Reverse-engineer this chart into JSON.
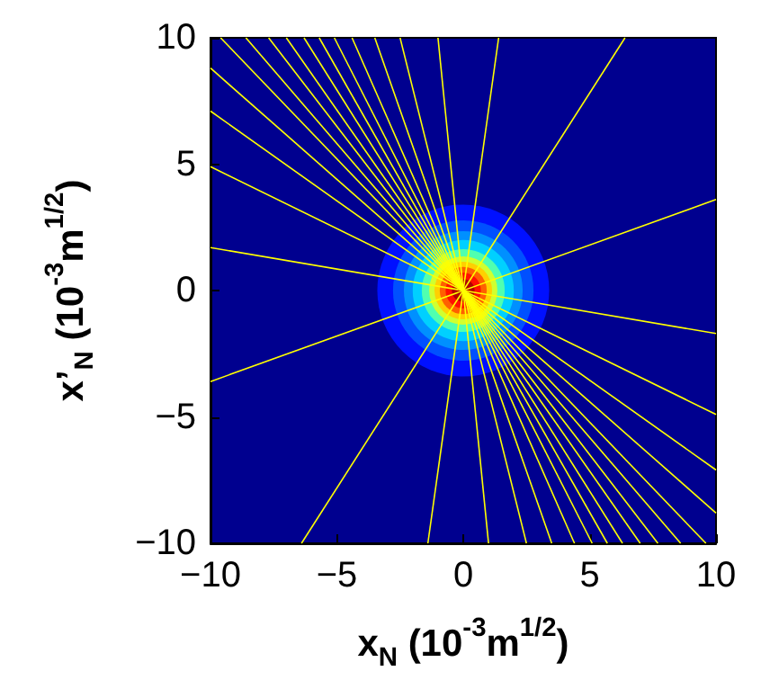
{
  "chart_data": {
    "type": "line",
    "xlabel": "x$_{N}$ (10$^{-3}$m$^{1/2}$)",
    "ylabel": "x’$_{N}$ (10$^{-3}$m$^{1/2}$)",
    "xlim": [
      -10,
      10
    ],
    "ylim": [
      -10,
      10
    ],
    "xticks": [
      -10,
      -5,
      0,
      5,
      10
    ],
    "yticks": [
      -10,
      -5,
      0,
      5,
      10
    ],
    "grid": false,
    "series": [
      {
        "color": "#ffff00",
        "x": [
          -9.6,
          9.6
        ],
        "values": [
          10,
          -10
        ]
      },
      {
        "color": "#ffff00",
        "x": [
          -8.6,
          8.6
        ],
        "values": [
          10,
          -10
        ]
      },
      {
        "color": "#ffff00",
        "x": [
          -7.7,
          7.7
        ],
        "values": [
          10,
          -10
        ]
      },
      {
        "color": "#ffff00",
        "x": [
          -7.0,
          7.0
        ],
        "values": [
          10,
          -10
        ]
      },
      {
        "color": "#ffff00",
        "x": [
          -6.3,
          6.3
        ],
        "values": [
          10,
          -10
        ]
      },
      {
        "color": "#ffff00",
        "x": [
          -5.7,
          5.7
        ],
        "values": [
          10,
          -10
        ]
      },
      {
        "color": "#ffff00",
        "x": [
          -5.1,
          5.1
        ],
        "values": [
          10,
          -10
        ]
      },
      {
        "color": "#ffff00",
        "x": [
          -4.4,
          4.4
        ],
        "values": [
          10,
          -10
        ]
      },
      {
        "color": "#ffff00",
        "x": [
          -3.5,
          3.5
        ],
        "values": [
          10,
          -10
        ]
      },
      {
        "color": "#ffff00",
        "x": [
          -2.5,
          2.5
        ],
        "values": [
          10,
          -10
        ]
      },
      {
        "color": "#ffff00",
        "x": [
          -1.0,
          1.0
        ],
        "values": [
          10,
          -10
        ]
      },
      {
        "color": "#ffff00",
        "x": [
          1.4,
          -1.4
        ],
        "values": [
          10,
          -10
        ]
      },
      {
        "color": "#ffff00",
        "x": [
          6.4,
          -6.4
        ],
        "values": [
          10,
          -10
        ]
      },
      {
        "color": "#ffff00",
        "x": [
          -10,
          10
        ],
        "values": [
          8.8,
          -8.8
        ]
      },
      {
        "color": "#ffff00",
        "x": [
          -10,
          10
        ],
        "values": [
          7.1,
          -7.1
        ]
      },
      {
        "color": "#ffff00",
        "x": [
          -10,
          10
        ],
        "values": [
          4.9,
          -4.9
        ]
      },
      {
        "color": "#ffff00",
        "x": [
          -10,
          10
        ],
        "values": [
          1.7,
          -1.7
        ]
      },
      {
        "color": "#ffff00",
        "x": [
          -10,
          10
        ],
        "values": [
          -3.6,
          3.6
        ]
      }
    ]
  }
}
